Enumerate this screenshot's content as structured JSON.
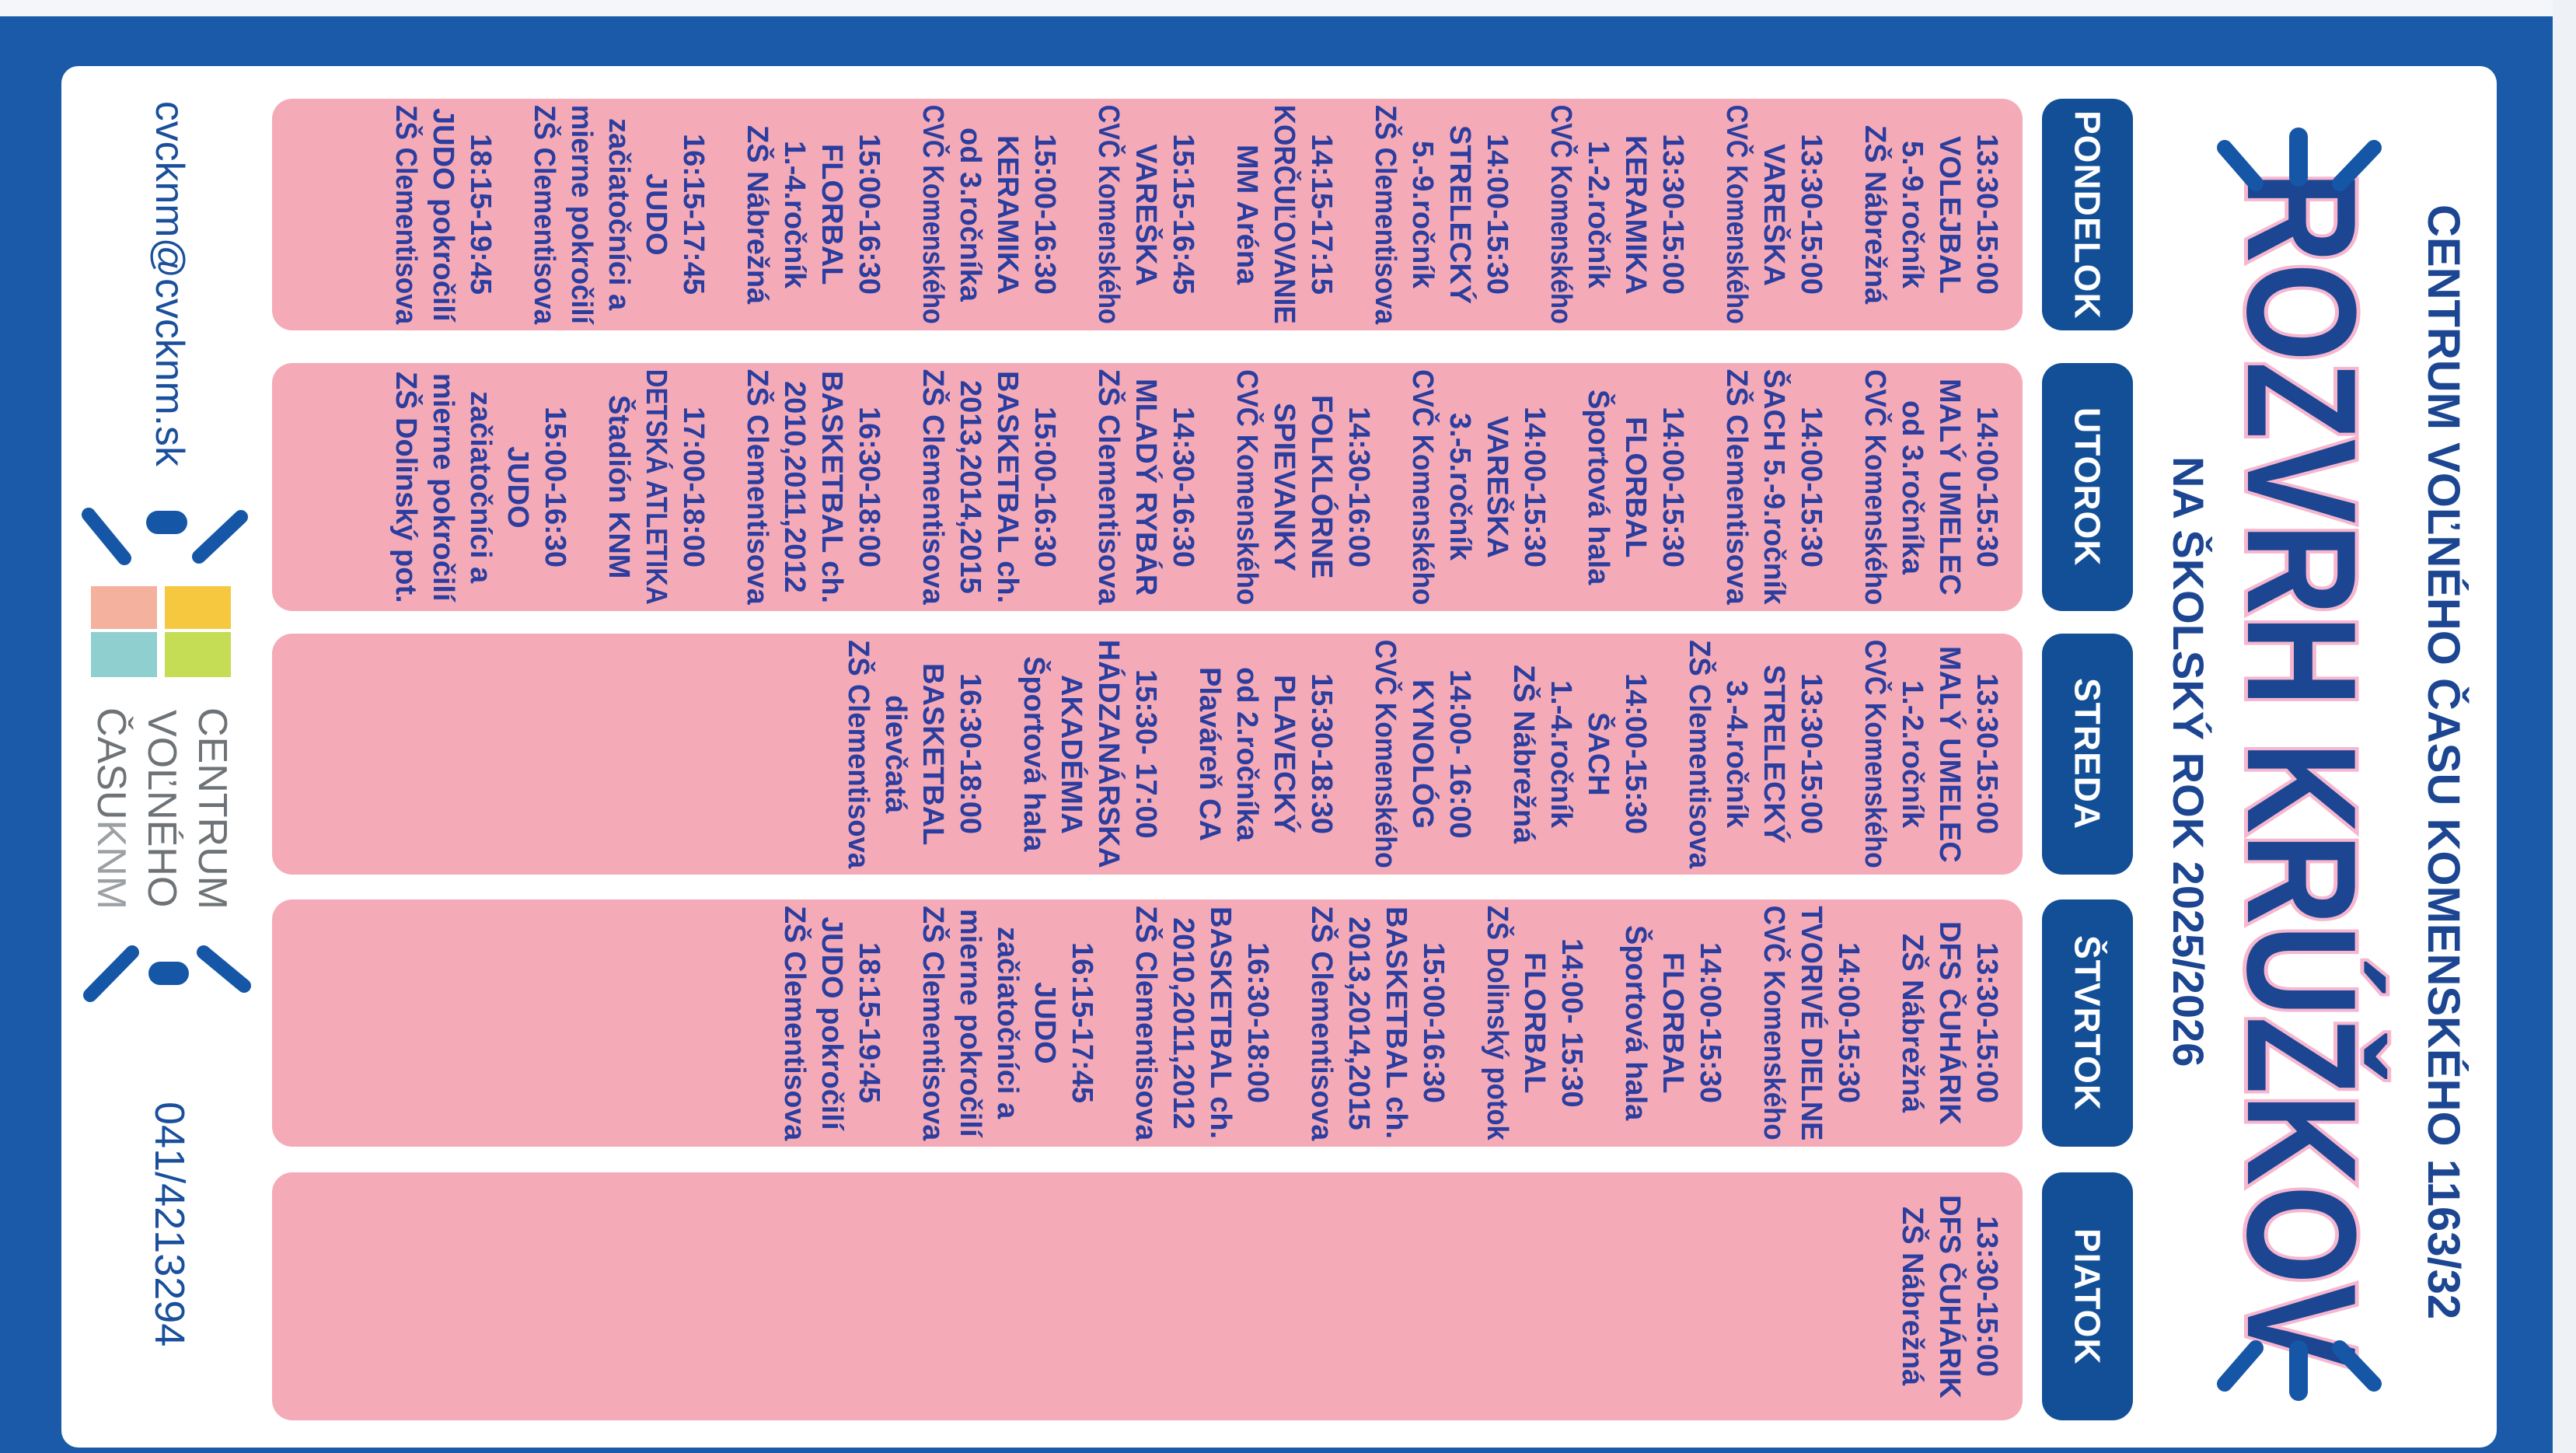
{
  "header": {
    "organization": "CENTRUM VOĽNÉHO ČASU KOMENSKÉHO 1163/32",
    "title": "ROZVRH KRÚŽKOV",
    "subtitle": "NA ŠKOLSKÝ ROK 2025/2026"
  },
  "days": [
    {
      "name": "PONDELOK",
      "entries": [
        [
          "13:30-15:00",
          "VOLEJBAL",
          "5.-9.ročník",
          "ZŠ Nábrežná"
        ],
        [
          "13:30-15:00",
          "VAREŠKA",
          "CVČ Komenského"
        ],
        [
          "13:30-15:00",
          "KERAMIKA",
          "1.-2.ročník",
          "CVČ Komenského"
        ],
        [
          "14:00-15:30",
          "STRELECKÝ",
          "5.-9.ročník",
          "ZŠ Clementisova"
        ],
        [
          "14:15-17:15",
          "KORČUĽOVANIE",
          "MM Aréna"
        ],
        [
          "15:15-16:45",
          "VAREŠKA",
          "CVČ Komenského"
        ],
        [
          "15:00-16:30",
          "KERAMIKA",
          "od 3.ročníka",
          "CVČ Komenského"
        ],
        [
          "15:00-16:30",
          "FLORBAL",
          "1.-4.ročník",
          "ZŠ Nábrežná"
        ],
        [
          "16:15-17:45",
          "JUDO",
          "začiatočníci a",
          "mierne pokročilí",
          "ZŠ Clementisova"
        ],
        [
          "18:15-19:45",
          "JUDO pokročilí",
          "ZŠ Clementisova"
        ]
      ]
    },
    {
      "name": "UTOROK",
      "entries": [
        [
          "14:00-15:30",
          "MALÝ UMELEC",
          "od 3.ročníka",
          "CVČ Komenského"
        ],
        [
          "14:00-15:30",
          "ŠACH 5.-9.ročník",
          "ZŠ Clementisova"
        ],
        [
          "14:00-15:30",
          "FLORBAL",
          "Športová hala"
        ],
        [
          "14:00-15:30",
          "VAREŠKA",
          "3.-5.ročník",
          "CVČ Komenského"
        ],
        [
          "14:30-16:00",
          "FOLKLÓRNE",
          "SPIEVANKY",
          "CVČ Komenského"
        ],
        [
          "14:30-16:30",
          "MLADÝ RYBÁR",
          "ZŠ Clementisova"
        ],
        [
          "15:00-16:30",
          "BASKETBAL ch.",
          "2013,2014,2015",
          "ZŠ Clementisova"
        ],
        [
          "16:30-18:00",
          "BASKETBAL ch.",
          "2010,2011,2012",
          "ZŠ Clementisova"
        ],
        [
          "17:00-18:00",
          "DETSKÁ ATLETIKA",
          "Štadión KNM"
        ],
        [
          "15:00-16:30",
          "JUDO",
          "začiatočníci a",
          "mierne pokročilí",
          "ZŠ Dolinský pot."
        ]
      ]
    },
    {
      "name": "STREDA",
      "entries": [
        [
          "13:30-15:00",
          "MALÝ UMELEC",
          "1.-2.ročník",
          "CVČ Komenského"
        ],
        [
          "13:30-15:00",
          "STRELECKÝ",
          "3.-4.ročník",
          "ZŠ Clementisova"
        ],
        [
          "14:00-15:30",
          "ŠACH",
          "1.-4.ročník",
          "ZŠ Nábrežná"
        ],
        [
          "14:00- 16:00",
          "KYNOLÓG",
          "CVČ Komenského"
        ],
        [
          "15:30-18:30",
          "PLAVECKÝ",
          "od 2.ročníka",
          "Plaváreň CA"
        ],
        [
          "15:30- 17:00",
          "HÁDZANÁRSKA",
          "AKADÉMIA",
          "Športová hala"
        ],
        [
          "16:30-18:00",
          "BASKETBAL",
          "dievčatá",
          "ZŠ Clementisova"
        ]
      ]
    },
    {
      "name": "ŠTVRTOK",
      "entries": [
        [
          "13:30-15:00",
          "DFS ČUHÁRIK",
          "ZŠ Nábrežná"
        ],
        [
          "14:00-15:30",
          "TVORIVÉ DIELNE",
          "CVČ Komenského"
        ],
        [
          "14:00-15:30",
          "FLORBAL",
          "Športová hala"
        ],
        [
          "14:00- 15:30",
          "FLORBAL",
          "ZŠ Dolinský potok"
        ],
        [
          "15:00-16:30",
          "BASKETBAL ch.",
          "2013,2014,2015",
          "ZŠ Clementisova"
        ],
        [
          "16:30-18:00",
          "BASKETBAL ch.",
          "2010,2011,2012",
          "ZŠ Clementisova"
        ],
        [
          "16:15-17:45",
          "JUDO",
          "začiatočníci a",
          "mierne pokročilí",
          "ZŠ Clementisova"
        ],
        [
          "18:15-19:45",
          "JUDO pokročilí",
          "ZŠ Clementisova"
        ]
      ]
    },
    {
      "name": "PIATOK",
      "entries": [
        [
          "13:30-15:00",
          "DFS ČUHÁRIK",
          "ZŠ Nábrežná"
        ]
      ]
    }
  ],
  "footer": {
    "email": "cvcknm@cvcknm.sk",
    "phone": "041/4213294",
    "logo": {
      "line1": "CENTRUM",
      "line2": "VOĽNÉHO",
      "line3": "ČASU",
      "line3_suffix": "KNM"
    }
  },
  "colors": {
    "frame_blue": "#1a5aa8",
    "day_header_blue": "#124f97",
    "band_pink": "#f5abb7",
    "text_blue": "#2b3d9e",
    "logo_orange": "#f4b19e",
    "logo_yellow": "#f6c83f",
    "logo_teal": "#8fcfd0",
    "logo_green": "#c5dc55"
  },
  "icons": [
    "starburst-dashes-icon",
    "cvc-logo-squares-icon"
  ]
}
